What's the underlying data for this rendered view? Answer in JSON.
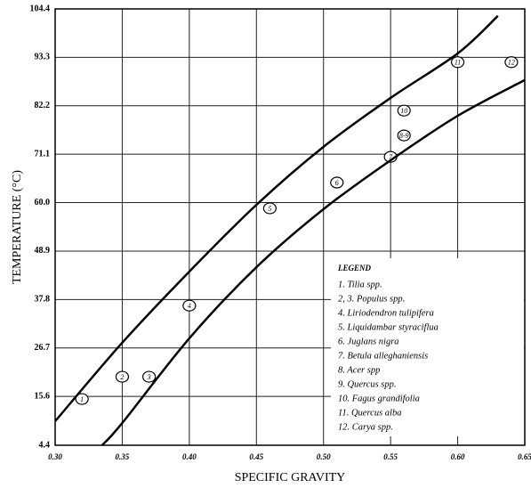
{
  "chart_data": {
    "type": "scatter",
    "ylabel": "TEMPERATURE (°C)",
    "xlabel": "SPECIFIC GRAVITY",
    "xlim": [
      0.3,
      0.65
    ],
    "xticks": [
      {
        "value": 0.3,
        "label": "0.30"
      },
      0.35,
      {
        "value": 0.4,
        "label": "0.40"
      },
      0.45,
      {
        "value": 0.5,
        "label": "0.50"
      },
      0.55,
      {
        "value": 0.6,
        "label": "0.60"
      },
      0.65
    ],
    "ylim": [
      4.4,
      104.4
    ],
    "yticks": [
      4.4,
      15.6,
      26.7,
      37.8,
      48.9,
      {
        "value": 60,
        "label": "60.0"
      },
      71.1,
      82.2,
      93.3,
      104.4
    ],
    "grid": true,
    "series": [
      {
        "type": "scatter",
        "color": "#000000",
        "x": [
          0.32,
          0.35,
          0.37,
          0.4,
          0.46,
          0.51,
          0.55,
          0.56,
          0.56,
          0.6,
          0.64
        ],
        "values": [
          15.0,
          20.1,
          20.1,
          36.4,
          58.7,
          64.6,
          70.5,
          75.4,
          81.1,
          92.2,
          92.2
        ],
        "labels": [
          "1",
          "2",
          "3",
          "4",
          "5",
          "6",
          "7",
          "8-9",
          "10",
          "11",
          "12"
        ]
      },
      {
        "type": "line",
        "color": "#000000",
        "x": [
          0.3,
          0.35,
          0.4,
          0.45,
          0.5,
          0.55,
          0.6,
          0.63
        ],
        "values": [
          9.9,
          27.9,
          44.2,
          59.5,
          72.8,
          84.0,
          94.2,
          102.8
        ]
      },
      {
        "type": "line",
        "color": "#000000",
        "x": [
          0.335,
          0.35,
          0.4,
          0.45,
          0.5,
          0.55,
          0.6,
          0.65
        ],
        "values": [
          4.4,
          9.5,
          28.9,
          45.2,
          58.5,
          69.7,
          79.9,
          88.1
        ]
      }
    ],
    "legend": {
      "title": "LEGEND",
      "entries": [
        "1. Tilia spp.",
        "2, 3. Populus spp.",
        "4. Liriodendron tulipifera",
        "5. Liquidambar styraciflua",
        "6. Juglans nigra",
        "7. Betula alleghaniensis",
        "8. Acer spp",
        "9. Quercus spp.",
        "10. Fagus grandifolia",
        "11. Quercus alba",
        "12. Carya spp."
      ]
    }
  }
}
